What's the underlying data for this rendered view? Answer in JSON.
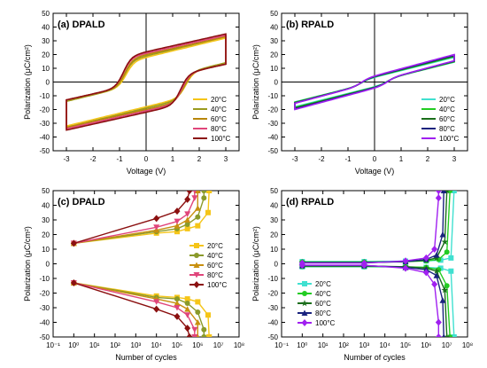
{
  "chart_data": [
    {
      "panel": "a",
      "type": "line",
      "title": "(a) DPALD",
      "xlabel": "Voltage (V)",
      "ylabel": "Polarization (μC/cm²)",
      "xlim": [
        -3.5,
        3.5
      ],
      "ylim": [
        -50,
        50
      ],
      "xticks": [
        -3,
        -2,
        -1,
        0,
        1,
        2,
        3
      ],
      "yticks": [
        -50,
        -40,
        -30,
        -20,
        -10,
        0,
        10,
        20,
        30,
        40,
        50
      ],
      "xtick_labels": [
        "-3",
        "-2",
        "-1",
        "0",
        "1",
        "2",
        "3"
      ],
      "ytick_labels": [
        "-50",
        "-40",
        "-30",
        "-20",
        "-10",
        "0",
        "10",
        "20",
        "30",
        "40",
        "50"
      ],
      "legend": "bottom-right",
      "grid": false,
      "series": [
        {
          "name": "20°C",
          "color": "#f5c518",
          "pmax": 32,
          "pr": 18,
          "vc_pos": 1.5,
          "vc_neg": -0.75
        },
        {
          "name": "40°C",
          "color": "#9a9a1e",
          "pmax": 33,
          "pr": 19,
          "vc_pos": 1.45,
          "vc_neg": -0.8
        },
        {
          "name": "60°C",
          "color": "#b8860b",
          "pmax": 33,
          "pr": 20,
          "vc_pos": 1.4,
          "vc_neg": -0.8
        },
        {
          "name": "80°C",
          "color": "#e0457b",
          "pmax": 34,
          "pr": 21,
          "vc_pos": 1.35,
          "vc_neg": -0.85
        },
        {
          "name": "100°C",
          "color": "#8b1010",
          "pmax": 35,
          "pr": 22,
          "vc_pos": 1.3,
          "vc_neg": -0.85
        }
      ]
    },
    {
      "panel": "b",
      "type": "line",
      "title": "(b) RPALD",
      "xlabel": "Voltage (V)",
      "ylabel": "Polarization (μC/cm²)",
      "xlim": [
        -3.5,
        3.5
      ],
      "ylim": [
        -50,
        50
      ],
      "xticks": [
        -3,
        -2,
        -1,
        0,
        1,
        2,
        3
      ],
      "yticks": [
        -50,
        -40,
        -30,
        -20,
        -10,
        0,
        10,
        20,
        30,
        40,
        50
      ],
      "xtick_labels": [
        "-3",
        "-2",
        "-1",
        "0",
        "1",
        "2",
        "3"
      ],
      "ytick_labels": [
        "-50",
        "-40",
        "-30",
        "-20",
        "-10",
        "0",
        "10",
        "20",
        "30",
        "40",
        "50"
      ],
      "legend": "bottom-right",
      "grid": false,
      "series": [
        {
          "name": "20°C",
          "color": "#40e0d0",
          "pmax": 18,
          "pr": 3.5,
          "vc_pos": 0.5,
          "vc_neg": -0.5
        },
        {
          "name": "40°C",
          "color": "#22cc22",
          "pmax": 18.5,
          "pr": 3.8,
          "vc_pos": 0.5,
          "vc_neg": -0.5
        },
        {
          "name": "60°C",
          "color": "#1b6e1b",
          "pmax": 19,
          "pr": 4,
          "vc_pos": 0.5,
          "vc_neg": -0.5
        },
        {
          "name": "80°C",
          "color": "#1a237e",
          "pmax": 19.5,
          "pr": 4.2,
          "vc_pos": 0.5,
          "vc_neg": -0.5
        },
        {
          "name": "100°C",
          "color": "#a020f0",
          "pmax": 20,
          "pr": 4.5,
          "vc_pos": 0.5,
          "vc_neg": -0.5
        }
      ]
    },
    {
      "panel": "c",
      "type": "line",
      "title": "(c) DPALD",
      "xlabel": "Number of cycles",
      "ylabel": "Polarization (μC/cm²)",
      "xscale": "log",
      "xlim_exp": [
        -1,
        8
      ],
      "ylim": [
        -50,
        50
      ],
      "xtick_exponents": [
        -1,
        0,
        1,
        2,
        3,
        4,
        5,
        6,
        7,
        8
      ],
      "xtick_labels": [
        "10⁻¹",
        "10⁰",
        "10¹",
        "10²",
        "10³",
        "10⁴",
        "10⁵",
        "10⁶",
        "10⁷",
        "10⁸"
      ],
      "yticks": [
        -50,
        -40,
        -30,
        -20,
        -10,
        0,
        10,
        20,
        30,
        40,
        50
      ],
      "ytick_labels": [
        "-50",
        "-40",
        "-30",
        "-20",
        "-10",
        "0",
        "10",
        "20",
        "30",
        "40",
        "50"
      ],
      "legend": "right",
      "grid": false,
      "x_cycles": [
        1,
        10000,
        100000,
        316228,
        1000000,
        3162278
      ],
      "series": [
        {
          "name": "20°C",
          "color": "#f5c518",
          "marker": "square",
          "pos": [
            14,
            21,
            22,
            24,
            26,
            35,
            50
          ],
          "neg": [
            -13,
            -22,
            -23,
            -24,
            -26,
            -35,
            -50
          ],
          "end_exp": 6.55
        },
        {
          "name": "40°C",
          "color": "#8a9a2a",
          "marker": "circle",
          "pos": [
            14,
            22,
            24,
            27,
            32,
            45,
            50
          ],
          "neg": [
            -13,
            -23,
            -24,
            -27,
            -33,
            -45,
            -50
          ],
          "end_exp": 6.3
        },
        {
          "name": "60°C",
          "color": "#c89010",
          "marker": "triangle",
          "pos": [
            14,
            23,
            26,
            30,
            38,
            50
          ],
          "neg": [
            -13,
            -24,
            -27,
            -31,
            -40,
            -50
          ],
          "end_exp": 6.0
        },
        {
          "name": "80°C",
          "color": "#e0457b",
          "marker": "triangle-down",
          "pos": [
            14,
            25,
            29,
            34,
            45,
            50
          ],
          "neg": [
            -13,
            -26,
            -30,
            -35,
            -45,
            -50
          ],
          "end_exp": 5.85
        },
        {
          "name": "100°C",
          "color": "#8b1010",
          "marker": "diamond",
          "pos": [
            14,
            31,
            36,
            44,
            50
          ],
          "neg": [
            -13,
            -31,
            -36,
            -44,
            -50
          ],
          "end_exp": 5.6
        }
      ]
    },
    {
      "panel": "d",
      "type": "line",
      "title": "(d) RPALD",
      "xlabel": "Number of cycles",
      "ylabel": "Polarization (μC/cm²)",
      "xscale": "log",
      "xlim_exp": [
        -1,
        8
      ],
      "ylim": [
        -50,
        50
      ],
      "xtick_exponents": [
        -1,
        0,
        1,
        2,
        3,
        4,
        5,
        6,
        7,
        8
      ],
      "xtick_labels": [
        "10⁻¹",
        "10⁰",
        "10¹",
        "10²",
        "10³",
        "10⁴",
        "10⁵",
        "10⁶",
        "10⁷",
        "10⁸"
      ],
      "yticks": [
        -50,
        -40,
        -30,
        -20,
        -10,
        0,
        10,
        20,
        30,
        40,
        50
      ],
      "ytick_labels": [
        "-50",
        "-40",
        "-30",
        "-20",
        "-10",
        "0",
        "10",
        "20",
        "30",
        "40",
        "50"
      ],
      "legend": "bottom-left",
      "grid": false,
      "series": [
        {
          "name": "20°C",
          "color": "#40e0d0",
          "marker": "square",
          "pos": [
            [
              0,
              1.5
            ],
            [
              3,
              1.5
            ],
            [
              5,
              1.8
            ],
            [
              6,
              2
            ],
            [
              6.7,
              2.5
            ],
            [
              7.2,
              4
            ],
            [
              7.35,
              50
            ]
          ],
          "neg": [
            [
              0,
              -2
            ],
            [
              3,
              -2
            ],
            [
              5,
              -2.2
            ],
            [
              6,
              -2.5
            ],
            [
              6.7,
              -3
            ],
            [
              7.2,
              -5
            ],
            [
              7.35,
              -50
            ]
          ]
        },
        {
          "name": "40°C",
          "color": "#22cc22",
          "marker": "circle",
          "pos": [
            [
              0,
              1.2
            ],
            [
              3,
              1.2
            ],
            [
              5,
              1.5
            ],
            [
              6,
              2
            ],
            [
              6.6,
              3
            ],
            [
              7.0,
              8
            ],
            [
              7.15,
              50
            ]
          ],
          "neg": [
            [
              0,
              -1.8
            ],
            [
              3,
              -1.8
            ],
            [
              5,
              -2
            ],
            [
              6,
              -2.5
            ],
            [
              6.6,
              -4
            ],
            [
              7.0,
              -15
            ],
            [
              7.15,
              -50
            ]
          ]
        },
        {
          "name": "60°C",
          "color": "#1b6e1b",
          "marker": "star",
          "pos": [
            [
              0,
              1
            ],
            [
              3,
              1
            ],
            [
              5,
              1.5
            ],
            [
              6,
              2.5
            ],
            [
              6.5,
              4
            ],
            [
              6.9,
              15
            ],
            [
              7.0,
              50
            ]
          ],
          "neg": [
            [
              0,
              -1.5
            ],
            [
              3,
              -1.5
            ],
            [
              5,
              -2
            ],
            [
              6,
              -3
            ],
            [
              6.5,
              -5
            ],
            [
              6.9,
              -18
            ],
            [
              7.0,
              -50
            ]
          ]
        },
        {
          "name": "80°C",
          "color": "#1a237e",
          "marker": "triangle",
          "pos": [
            [
              0,
              0.8
            ],
            [
              3,
              0.8
            ],
            [
              5,
              1.5
            ],
            [
              6,
              3
            ],
            [
              6.5,
              6
            ],
            [
              6.8,
              20
            ],
            [
              6.85,
              50
            ]
          ],
          "neg": [
            [
              0,
              -1.2
            ],
            [
              3,
              -1.2
            ],
            [
              5,
              -2.5
            ],
            [
              6,
              -4
            ],
            [
              6.5,
              -8
            ],
            [
              6.8,
              -25
            ],
            [
              6.85,
              -50
            ]
          ]
        },
        {
          "name": "100°C",
          "color": "#a020f0",
          "marker": "diamond",
          "pos": [
            [
              0,
              0.5
            ],
            [
              3,
              0.5
            ],
            [
              5,
              2
            ],
            [
              6,
              4
            ],
            [
              6.4,
              10
            ],
            [
              6.6,
              45
            ],
            [
              6.6,
              50
            ]
          ],
          "neg": [
            [
              0,
              -1
            ],
            [
              3,
              -1
            ],
            [
              5,
              -3
            ],
            [
              6,
              -6
            ],
            [
              6.4,
              -14
            ],
            [
              6.6,
              -40
            ],
            [
              6.6,
              -50
            ]
          ]
        }
      ]
    }
  ]
}
